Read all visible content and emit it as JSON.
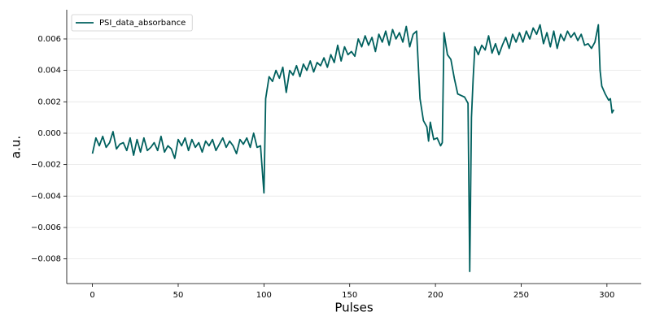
{
  "chart_data": {
    "type": "line",
    "xlabel": "Pulses",
    "ylabel": "a.u.",
    "legend": "upper left",
    "grid": true,
    "xlim": [
      -15,
      320
    ],
    "ylim": [
      -0.00957,
      0.00786
    ],
    "xticks": [
      0,
      50,
      100,
      150,
      200,
      250,
      300
    ],
    "yticks": [
      {
        "value": -0.008,
        "label": "−0.008"
      },
      {
        "value": -0.006,
        "label": "−0.006"
      },
      {
        "value": -0.004,
        "label": "−0.004"
      },
      {
        "value": -0.002,
        "label": "−0.002"
      },
      {
        "value": 0,
        "label": "0.000"
      },
      {
        "value": 0.002,
        "label": "0.002"
      },
      {
        "value": 0.004,
        "label": "0.004"
      },
      {
        "value": 0.006,
        "label": "0.006"
      }
    ],
    "x": [
      0,
      2,
      4,
      6,
      8,
      10,
      12,
      14,
      16,
      18,
      20,
      22,
      24,
      26,
      28,
      30,
      32,
      34,
      36,
      38,
      40,
      42,
      44,
      46,
      48,
      50,
      52,
      54,
      56,
      58,
      60,
      62,
      64,
      66,
      68,
      70,
      72,
      74,
      76,
      78,
      80,
      82,
      84,
      86,
      88,
      90,
      92,
      94,
      96,
      98,
      100,
      101,
      103,
      105,
      107,
      109,
      111,
      113,
      115,
      117,
      119,
      121,
      123,
      125,
      127,
      129,
      131,
      133,
      135,
      137,
      139,
      141,
      143,
      145,
      147,
      149,
      151,
      153,
      155,
      157,
      159,
      161,
      163,
      165,
      167,
      169,
      171,
      173,
      175,
      177,
      179,
      181,
      183,
      185,
      187,
      189,
      191,
      193,
      195,
      196,
      197,
      199,
      201,
      203,
      204,
      205,
      207,
      209,
      211,
      213,
      215,
      217,
      219,
      220,
      221,
      222,
      223,
      225,
      227,
      229,
      231,
      233,
      235,
      237,
      239,
      241,
      243,
      245,
      247,
      249,
      251,
      253,
      255,
      257,
      259,
      261,
      263,
      265,
      267,
      269,
      271,
      273,
      275,
      277,
      279,
      281,
      283,
      285,
      287,
      289,
      291,
      293,
      295,
      296,
      297,
      299,
      301,
      302,
      303,
      304
    ],
    "series": [
      {
        "name": "PSI_data_absorbance",
        "color": "#00605e",
        "values": [
          -0.0013,
          -0.0003,
          -0.0008,
          -0.0002,
          -0.0009,
          -0.0006,
          0.0001,
          -0.001,
          -0.0007,
          -0.0006,
          -0.0011,
          -0.0003,
          -0.0014,
          -0.0004,
          -0.0012,
          -0.0003,
          -0.0011,
          -0.0009,
          -0.0006,
          -0.0011,
          -0.0002,
          -0.0012,
          -0.0008,
          -0.001,
          -0.0016,
          -0.0004,
          -0.0008,
          -0.0003,
          -0.0011,
          -0.0004,
          -0.0009,
          -0.0006,
          -0.0012,
          -0.0005,
          -0.0008,
          -0.0004,
          -0.0011,
          -0.0007,
          -0.0003,
          -0.0009,
          -0.0005,
          -0.0008,
          -0.0013,
          -0.0004,
          -0.0007,
          -0.0003,
          -0.0009,
          0.0,
          -0.0009,
          -0.0008,
          -0.0038,
          0.0022,
          0.0036,
          0.0033,
          0.004,
          0.0035,
          0.0042,
          0.0026,
          0.004,
          0.0037,
          0.0043,
          0.0036,
          0.0044,
          0.004,
          0.0046,
          0.0039,
          0.0045,
          0.0043,
          0.0048,
          0.0042,
          0.005,
          0.0045,
          0.0056,
          0.0046,
          0.0055,
          0.005,
          0.0052,
          0.0049,
          0.006,
          0.0055,
          0.0062,
          0.0056,
          0.0061,
          0.0052,
          0.0063,
          0.0058,
          0.0065,
          0.0056,
          0.0066,
          0.006,
          0.0064,
          0.0058,
          0.0068,
          0.0055,
          0.0063,
          0.0065,
          0.0022,
          0.0008,
          0.0004,
          -0.0005,
          0.0007,
          -0.0004,
          -0.0003,
          -0.0008,
          -0.0006,
          0.0064,
          0.005,
          0.0047,
          0.0035,
          0.0025,
          0.0024,
          0.0023,
          0.0019,
          -0.0088,
          0.001,
          0.0035,
          0.0055,
          0.005,
          0.0056,
          0.0053,
          0.0062,
          0.0051,
          0.0057,
          0.005,
          0.0056,
          0.0061,
          0.0054,
          0.0063,
          0.0058,
          0.0064,
          0.0058,
          0.0065,
          0.006,
          0.0067,
          0.0063,
          0.0069,
          0.0057,
          0.0064,
          0.0055,
          0.0065,
          0.0054,
          0.0063,
          0.0059,
          0.0065,
          0.0061,
          0.0064,
          0.0059,
          0.0063,
          0.0056,
          0.0057,
          0.0054,
          0.0058,
          0.0069,
          0.004,
          0.003,
          0.0025,
          0.0021,
          0.0022,
          0.0013,
          0.0015
        ]
      }
    ]
  }
}
